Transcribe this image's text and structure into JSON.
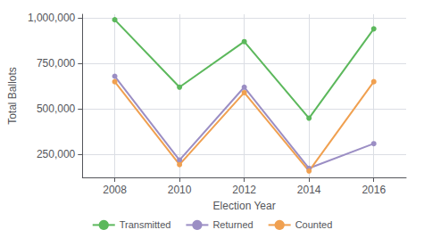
{
  "chart_data": {
    "type": "line",
    "xlabel": "Election Year",
    "ylabel": "Total Ballots",
    "x": [
      2008,
      2010,
      2012,
      2014,
      2016
    ],
    "series": [
      {
        "name": "Transmitted",
        "color": "#5cb85c",
        "values": [
          990000,
          620000,
          870000,
          450000,
          940000
        ]
      },
      {
        "name": "Returned",
        "color": "#9b8ec4",
        "values": [
          680000,
          220000,
          620000,
          175000,
          310000
        ]
      },
      {
        "name": "Counted",
        "color": "#f0a050",
        "values": [
          650000,
          195000,
          590000,
          160000,
          650000
        ]
      }
    ],
    "xlim": [
      2007,
      2017
    ],
    "xticks": [
      2008,
      2010,
      2012,
      2014,
      2016
    ],
    "ylim": [
      125000,
      1020000
    ],
    "yticks": [
      {
        "value": 250000,
        "label": "250,000"
      },
      {
        "value": 500000,
        "label": "500,000"
      },
      {
        "value": 750000,
        "label": "750,000"
      },
      {
        "value": 1000000,
        "label": "1,000,000"
      }
    ],
    "grid": true,
    "legend": "bottom",
    "marker": "circle"
  }
}
